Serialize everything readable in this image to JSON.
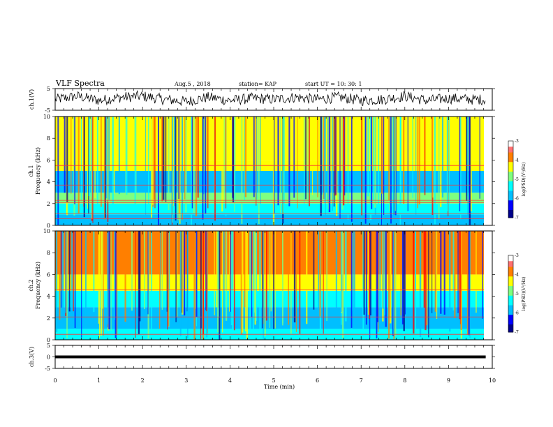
{
  "header": {
    "title": "VLF Spectra",
    "date": "Aug.5 , 2018",
    "station": "station= KAP",
    "start": "start UT = 10: 30: 1"
  },
  "colors": {
    "spectrum": [
      "#00008b",
      "#0000ff",
      "#00bfff",
      "#00ffff",
      "#7fff7f",
      "#ffff00",
      "#ff7f00",
      "#ff0000",
      "#ff5a5a",
      "#ffffff"
    ],
    "trace": "#000000"
  },
  "chart_data": [
    {
      "type": "line",
      "name_label": "ch.1(V)",
      "ylim": [
        -5,
        5
      ],
      "yticks": [
        "5",
        "-5"
      ],
      "xlim": [
        0,
        10
      ],
      "x": [
        0,
        0.5,
        1,
        1.5,
        2,
        2.5,
        3,
        3.5,
        4,
        4.5,
        5,
        5.5,
        6,
        6.5,
        7,
        7.5,
        8,
        8.5,
        9,
        9.5,
        9.85
      ],
      "y": [
        0,
        1.5,
        -0.5,
        1,
        1.5,
        0,
        -1,
        1,
        -0.5,
        0.5,
        0,
        1,
        0,
        1,
        -0.5,
        0,
        1.5,
        -0.5,
        0.5,
        0,
        0
      ]
    },
    {
      "type": "heatmap",
      "name_label": "ch.1",
      "ylabel": "Frequency (kHz)",
      "ylim": [
        0,
        10
      ],
      "yticks": [
        "0",
        "2",
        "4",
        "6",
        "8",
        "10"
      ],
      "xlim": [
        0,
        10
      ],
      "colorbar": {
        "label": "log(PSD)(V²/Hz)",
        "range": [
          -7,
          -3
        ],
        "ticks": [
          "-3",
          "-4",
          "-5",
          "-6",
          "-7"
        ]
      },
      "bands": [
        {
          "f": [
            0,
            1
          ],
          "level": -6
        },
        {
          "f": [
            1,
            2
          ],
          "level": -5.5
        },
        {
          "f": [
            2,
            3
          ],
          "level": -4.8
        },
        {
          "f": [
            3,
            5
          ],
          "level": -5.8
        },
        {
          "f": [
            5,
            6
          ],
          "level": -4.5
        },
        {
          "f": [
            6,
            10
          ],
          "level": -4.2
        }
      ],
      "lines_khz": [
        0.6,
        1.1,
        2.1,
        2.3,
        3.7,
        5.5
      ]
    },
    {
      "type": "heatmap",
      "name_label": "ch.2",
      "ylabel": "Frequency (kHz)",
      "ylim": [
        0,
        10
      ],
      "yticks": [
        "0",
        "2",
        "4",
        "6",
        "8",
        "10"
      ],
      "xlim": [
        0,
        10
      ],
      "colorbar": {
        "label": "log(PSD)(V²/Hz)",
        "range": [
          -7,
          -3
        ],
        "ticks": [
          "-3",
          "-4",
          "-5",
          "-6",
          "-7"
        ]
      },
      "bands": [
        {
          "f": [
            0,
            1
          ],
          "level": -5.3
        },
        {
          "f": [
            1,
            3
          ],
          "level": -5.8
        },
        {
          "f": [
            3,
            4.5
          ],
          "level": -5.2
        },
        {
          "f": [
            4.5,
            6
          ],
          "level": -4.4
        },
        {
          "f": [
            6,
            10
          ],
          "level": -3.9
        }
      ],
      "lines_khz": [
        0.5,
        2.1,
        4.6
      ]
    },
    {
      "type": "line",
      "name_label": "ch.3(V)",
      "xlabel": "Time (min)",
      "ylim": [
        -5,
        5
      ],
      "yticks": [
        "5",
        "0",
        "-5"
      ],
      "xlim": [
        0,
        10
      ],
      "xticks": [
        "0",
        "1",
        "2",
        "3",
        "4",
        "5",
        "6",
        "7",
        "8",
        "9",
        "10"
      ],
      "x": [
        0,
        9.85
      ],
      "y": [
        0,
        0
      ]
    }
  ]
}
